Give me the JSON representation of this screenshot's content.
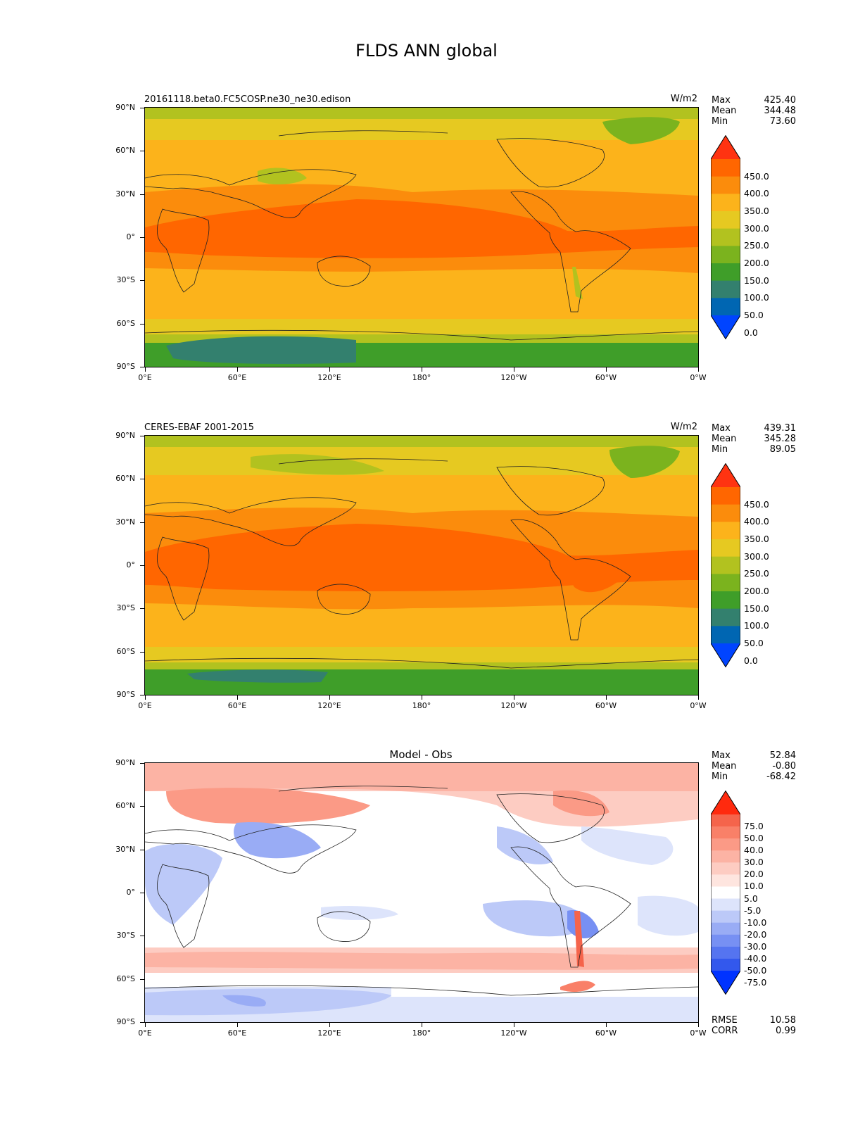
{
  "figure_title": "FLDS ANN global",
  "chart_data": [
    {
      "type": "heatmap",
      "title_left": "20161118.beta0.FC5COSP.ne30_ne30.edison",
      "units": "W/m2",
      "stats": [
        {
          "label": "Max",
          "value": "425.40"
        },
        {
          "label": "Mean",
          "value": "344.48"
        },
        {
          "label": "Min",
          "value": "73.60"
        }
      ],
      "x_ticks": [
        "0°E",
        "60°E",
        "120°E",
        "180°",
        "120°W",
        "60°W",
        "0°W"
      ],
      "y_ticks": [
        "90°N",
        "60°N",
        "30°N",
        "0°",
        "30°S",
        "60°S",
        "90°S"
      ],
      "xlim": [
        0,
        360
      ],
      "ylim": [
        -90,
        90
      ],
      "colorbar": {
        "labels": [
          "450.0",
          "400.0",
          "350.0",
          "300.0",
          "250.0",
          "200.0",
          "150.0",
          "100.0",
          "50.0",
          "0.0"
        ],
        "colors": [
          "#ff3311",
          "#ff6600",
          "#fb8c0c",
          "#fcb31b",
          "#e6c921",
          "#b2c21f",
          "#7bb31e",
          "#3f9e29",
          "#33806e",
          "#0066b2",
          "#0044ff"
        ]
      }
    },
    {
      "type": "heatmap",
      "title_left": "CERES-EBAF 2001-2015",
      "units": "W/m2",
      "stats": [
        {
          "label": "Max",
          "value": "439.31"
        },
        {
          "label": "Mean",
          "value": "345.28"
        },
        {
          "label": "Min",
          "value": "89.05"
        }
      ],
      "x_ticks": [
        "0°E",
        "60°E",
        "120°E",
        "180°",
        "120°W",
        "60°W",
        "0°W"
      ],
      "y_ticks": [
        "90°N",
        "60°N",
        "30°N",
        "0°",
        "30°S",
        "60°S",
        "90°S"
      ],
      "xlim": [
        0,
        360
      ],
      "ylim": [
        -90,
        90
      ],
      "colorbar": {
        "labels": [
          "450.0",
          "400.0",
          "350.0",
          "300.0",
          "250.0",
          "200.0",
          "150.0",
          "100.0",
          "50.0",
          "0.0"
        ],
        "colors": [
          "#ff3311",
          "#ff6600",
          "#fb8c0c",
          "#fcb31b",
          "#e6c921",
          "#b2c21f",
          "#7bb31e",
          "#3f9e29",
          "#33806e",
          "#0066b2",
          "#0044ff"
        ]
      }
    },
    {
      "type": "heatmap",
      "title_center": "Model - Obs",
      "stats": [
        {
          "label": "Max",
          "value": "52.84"
        },
        {
          "label": "Mean",
          "value": "-0.80"
        },
        {
          "label": "Min",
          "value": "-68.42"
        }
      ],
      "bottom_stats": [
        {
          "label": "RMSE",
          "value": "10.58"
        },
        {
          "label": "CORR",
          "value": "0.99"
        }
      ],
      "x_ticks": [
        "0°E",
        "60°E",
        "120°E",
        "180°",
        "120°W",
        "60°W",
        "0°W"
      ],
      "y_ticks": [
        "90°N",
        "60°N",
        "30°N",
        "0°",
        "30°S",
        "60°S",
        "90°S"
      ],
      "xlim": [
        0,
        360
      ],
      "ylim": [
        -90,
        90
      ],
      "colorbar": {
        "labels": [
          "75.0",
          "50.0",
          "40.0",
          "30.0",
          "20.0",
          "10.0",
          "5.0",
          "-5.0",
          "-10.0",
          "-20.0",
          "-30.0",
          "-40.0",
          "-50.0",
          "-75.0"
        ],
        "colors": [
          "#ff2a0e",
          "#f5644b",
          "#f98068",
          "#fb9a86",
          "#fcb3a4",
          "#fdccc2",
          "#fee5df",
          "#ffffff",
          "#dde4fb",
          "#bcc9f8",
          "#99acf5",
          "#7790f3",
          "#5574f0",
          "#3358ed",
          "#0033ff"
        ]
      }
    }
  ]
}
